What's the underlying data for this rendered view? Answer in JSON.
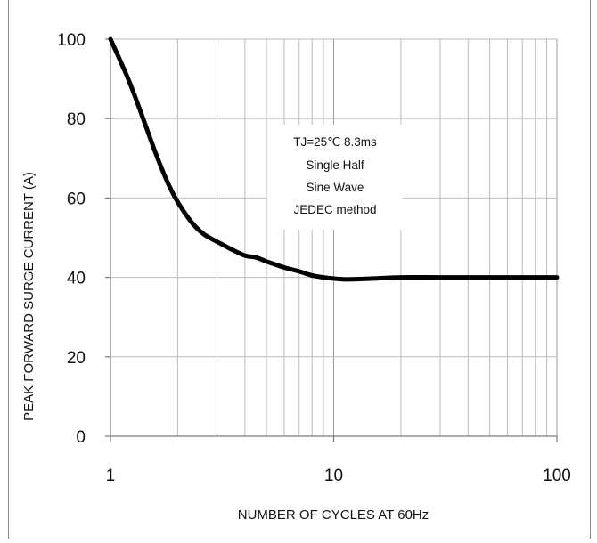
{
  "chart_data": {
    "type": "line",
    "title": "",
    "xlabel": "NUMBER OF CYCLES AT 60Hz",
    "ylabel": "PEAK FORWARD SURGE CURRENT (A)",
    "x_scale": "log",
    "xlim": [
      1,
      100
    ],
    "ylim": [
      0,
      100
    ],
    "x_ticks": [
      1,
      10,
      100
    ],
    "x_tick_labels": [
      "1",
      "10",
      "100"
    ],
    "y_ticks": [
      0,
      20,
      40,
      60,
      80,
      100
    ],
    "y_tick_labels": [
      "0",
      "20",
      "40",
      "60",
      "80",
      "100"
    ],
    "grid": true,
    "annotation_lines": [
      "TJ=25℃ 8.3ms",
      "Single Half",
      "Sine Wave",
      "JEDEC method"
    ],
    "series": [
      {
        "color": "#000000",
        "x": [
          1,
          1.2,
          1.4,
          1.6,
          1.8,
          2,
          2.3,
          2.6,
          3,
          3.5,
          4,
          4.5,
          5,
          6,
          7,
          8,
          9,
          10,
          11,
          12,
          15,
          20,
          30,
          50,
          100
        ],
        "y": [
          100,
          90,
          80,
          71,
          64,
          59,
          54,
          51,
          49,
          47,
          45.5,
          45,
          44,
          42.5,
          41.5,
          40.5,
          40,
          39.7,
          39.5,
          39.5,
          39.7,
          40,
          40,
          40,
          40
        ]
      }
    ]
  }
}
